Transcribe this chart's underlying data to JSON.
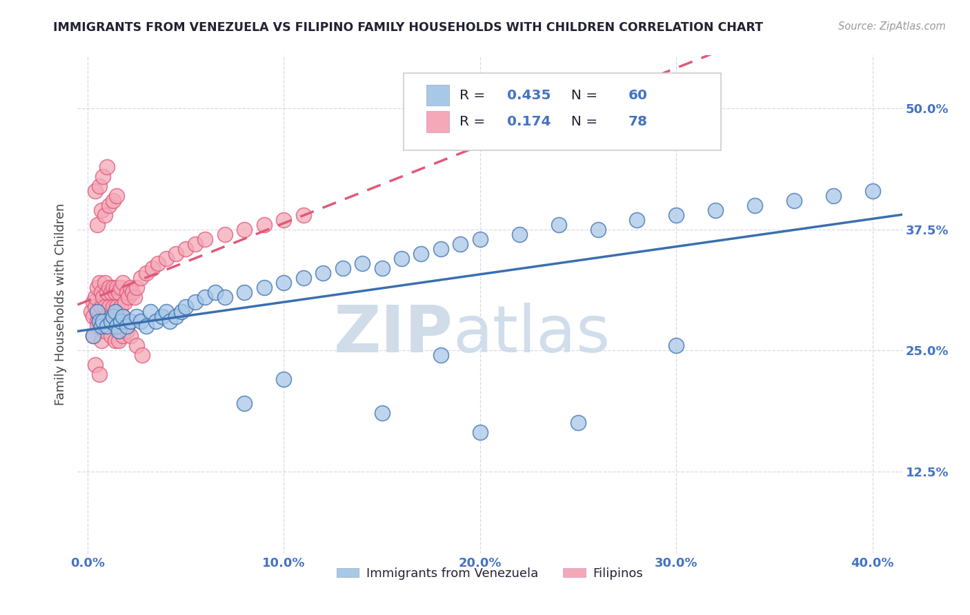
{
  "title": "IMMIGRANTS FROM VENEZUELA VS FILIPINO FAMILY HOUSEHOLDS WITH CHILDREN CORRELATION CHART",
  "source": "Source: ZipAtlas.com",
  "ylabel": "Family Households with Children",
  "x_ticks": [
    "0.0%",
    "10.0%",
    "20.0%",
    "30.0%",
    "40.0%"
  ],
  "x_tick_vals": [
    0.0,
    0.1,
    0.2,
    0.3,
    0.4
  ],
  "y_ticks": [
    "12.5%",
    "25.0%",
    "37.5%",
    "50.0%"
  ],
  "y_tick_vals": [
    0.125,
    0.25,
    0.375,
    0.5
  ],
  "xlim": [
    -0.005,
    0.415
  ],
  "ylim": [
    0.04,
    0.555
  ],
  "legend_labels": [
    "Immigrants from Venezuela",
    "Filipinos"
  ],
  "R_venezuela": 0.435,
  "N_venezuela": 60,
  "R_filipinos": 0.174,
  "N_filipinos": 78,
  "blue_color": "#a8c8e8",
  "pink_color": "#f4a8b8",
  "blue_line_color": "#3a6faf",
  "pink_line_color": "#e05878",
  "title_color": "#222233",
  "axis_label_color": "#444444",
  "tick_color": "#4472c4",
  "grid_color": "#d8d8e8",
  "watermark_color": "#d0dce8",
  "venezuela_x": [
    0.003,
    0.005,
    0.006,
    0.007,
    0.008,
    0.01,
    0.012,
    0.013,
    0.014,
    0.015,
    0.016,
    0.017,
    0.018,
    0.02,
    0.022,
    0.025,
    0.027,
    0.03,
    0.032,
    0.035,
    0.038,
    0.04,
    0.042,
    0.045,
    0.048,
    0.05,
    0.055,
    0.06,
    0.065,
    0.07,
    0.08,
    0.09,
    0.1,
    0.11,
    0.12,
    0.13,
    0.14,
    0.15,
    0.16,
    0.17,
    0.18,
    0.19,
    0.2,
    0.22,
    0.24,
    0.26,
    0.28,
    0.3,
    0.32,
    0.34,
    0.36,
    0.38,
    0.4,
    0.15,
    0.2,
    0.25,
    0.1,
    0.08,
    0.18,
    0.3
  ],
  "venezuela_y": [
    0.265,
    0.29,
    0.28,
    0.275,
    0.28,
    0.275,
    0.28,
    0.285,
    0.29,
    0.275,
    0.27,
    0.28,
    0.285,
    0.275,
    0.28,
    0.285,
    0.28,
    0.275,
    0.29,
    0.28,
    0.285,
    0.29,
    0.28,
    0.285,
    0.29,
    0.295,
    0.3,
    0.305,
    0.31,
    0.305,
    0.31,
    0.315,
    0.32,
    0.325,
    0.33,
    0.335,
    0.34,
    0.335,
    0.345,
    0.35,
    0.355,
    0.36,
    0.365,
    0.37,
    0.38,
    0.375,
    0.385,
    0.39,
    0.395,
    0.4,
    0.405,
    0.41,
    0.415,
    0.185,
    0.165,
    0.175,
    0.22,
    0.195,
    0.245,
    0.255
  ],
  "filipino_x": [
    0.002,
    0.003,
    0.003,
    0.004,
    0.004,
    0.005,
    0.005,
    0.006,
    0.006,
    0.007,
    0.007,
    0.008,
    0.008,
    0.009,
    0.009,
    0.01,
    0.01,
    0.011,
    0.011,
    0.012,
    0.012,
    0.013,
    0.013,
    0.014,
    0.014,
    0.015,
    0.015,
    0.016,
    0.016,
    0.017,
    0.017,
    0.018,
    0.018,
    0.019,
    0.02,
    0.021,
    0.022,
    0.023,
    0.024,
    0.025,
    0.027,
    0.03,
    0.033,
    0.036,
    0.04,
    0.045,
    0.05,
    0.055,
    0.06,
    0.07,
    0.08,
    0.09,
    0.1,
    0.11,
    0.005,
    0.007,
    0.009,
    0.011,
    0.013,
    0.015,
    0.004,
    0.006,
    0.008,
    0.01,
    0.003,
    0.005,
    0.007,
    0.009,
    0.012,
    0.014,
    0.016,
    0.018,
    0.02,
    0.022,
    0.025,
    0.028,
    0.004,
    0.006
  ],
  "filipino_y": [
    0.29,
    0.3,
    0.285,
    0.295,
    0.305,
    0.28,
    0.315,
    0.285,
    0.32,
    0.295,
    0.31,
    0.285,
    0.305,
    0.295,
    0.32,
    0.285,
    0.31,
    0.295,
    0.315,
    0.285,
    0.31,
    0.295,
    0.315,
    0.285,
    0.31,
    0.295,
    0.315,
    0.285,
    0.31,
    0.295,
    0.315,
    0.285,
    0.32,
    0.3,
    0.31,
    0.305,
    0.315,
    0.31,
    0.305,
    0.315,
    0.325,
    0.33,
    0.335,
    0.34,
    0.345,
    0.35,
    0.355,
    0.36,
    0.365,
    0.37,
    0.375,
    0.38,
    0.385,
    0.39,
    0.38,
    0.395,
    0.39,
    0.4,
    0.405,
    0.41,
    0.415,
    0.42,
    0.43,
    0.44,
    0.265,
    0.275,
    0.26,
    0.27,
    0.265,
    0.26,
    0.26,
    0.265,
    0.27,
    0.265,
    0.255,
    0.245,
    0.235,
    0.225
  ]
}
